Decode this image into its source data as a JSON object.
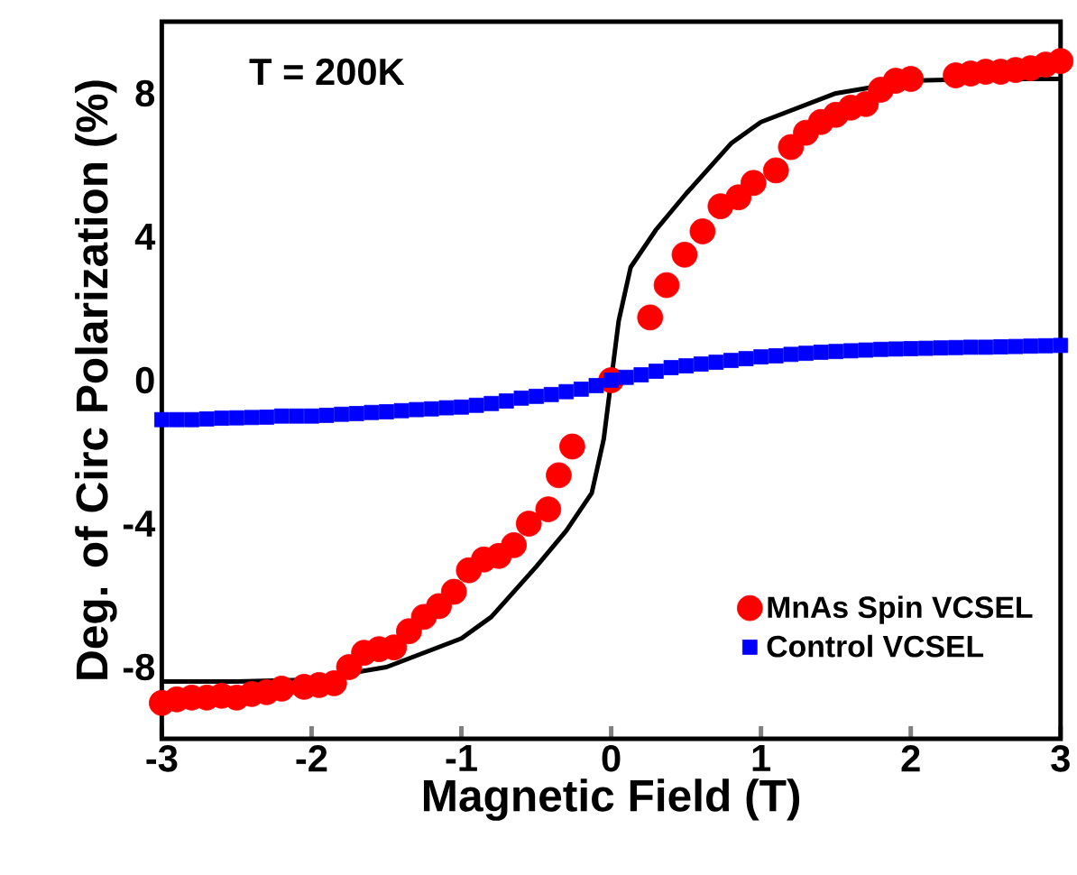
{
  "chart_data": {
    "type": "scatter",
    "xlabel": "Magnetic Field (T)",
    "ylabel": "Deg. of Circ Polarization (%)",
    "annotations": [
      "T = 200K"
    ],
    "xlim": [
      -3,
      3
    ],
    "xticks": [
      -3,
      -2,
      -1,
      0,
      1,
      2,
      3
    ],
    "ylim": [
      -10,
      10
    ],
    "yticks": [
      -8,
      -4,
      0,
      4,
      8
    ],
    "grid": false,
    "legend": "bottom right",
    "series": [
      {
        "name": "MnAs Spin VCSEL",
        "color": "#ff0000",
        "marker": "circle",
        "x": [
          -3,
          -2.9,
          -2.8,
          -2.7,
          -2.6,
          -2.5,
          -2.4,
          -2.3,
          -2.2,
          -2.05,
          -1.95,
          -1.85,
          -1.75,
          -1.65,
          -1.55,
          -1.45,
          -1.35,
          -1.25,
          -1.15,
          -1.05,
          -0.95,
          -0.85,
          -0.75,
          -0.65,
          -0.55,
          -0.42,
          -0.35,
          -0.26,
          0,
          0.26,
          0.37,
          0.49,
          0.61,
          0.73,
          0.85,
          0.95,
          1.1,
          1.2,
          1.3,
          1.4,
          1.5,
          1.6,
          1.7,
          1.8,
          1.9,
          2.0,
          2.3,
          2.4,
          2.5,
          2.6,
          2.7,
          2.8,
          2.9,
          3.0
        ],
        "values": [
          -9.0,
          -8.9,
          -8.85,
          -8.85,
          -8.8,
          -8.85,
          -8.75,
          -8.7,
          -8.6,
          -8.55,
          -8.5,
          -8.45,
          -8.0,
          -7.6,
          -7.5,
          -7.45,
          -7.0,
          -6.6,
          -6.3,
          -5.9,
          -5.3,
          -5.0,
          -4.9,
          -4.6,
          -4.0,
          -3.6,
          -2.65,
          -1.85,
          0,
          1.75,
          2.65,
          3.5,
          4.15,
          4.85,
          5.1,
          5.5,
          5.85,
          6.5,
          6.9,
          7.2,
          7.4,
          7.6,
          7.7,
          8.1,
          8.35,
          8.4,
          8.5,
          8.55,
          8.6,
          8.6,
          8.65,
          8.7,
          8.8,
          8.9
        ]
      },
      {
        "name": "Control VCSEL",
        "color": "#0000ff",
        "marker": "square",
        "x": [
          -3.0,
          -2.9,
          -2.8,
          -2.7,
          -2.6,
          -2.5,
          -2.4,
          -2.3,
          -2.2,
          -2.1,
          -2.0,
          -1.9,
          -1.8,
          -1.7,
          -1.6,
          -1.5,
          -1.4,
          -1.3,
          -1.2,
          -1.1,
          -1.0,
          -0.9,
          -0.8,
          -0.7,
          -0.6,
          -0.5,
          -0.4,
          -0.3,
          -0.2,
          -0.1,
          0,
          0.1,
          0.2,
          0.3,
          0.4,
          0.5,
          0.6,
          0.7,
          0.8,
          0.9,
          1.0,
          1.1,
          1.2,
          1.3,
          1.4,
          1.5,
          1.6,
          1.7,
          1.8,
          1.9,
          2.0,
          2.1,
          2.2,
          2.3,
          2.4,
          2.5,
          2.6,
          2.7,
          2.8,
          2.9,
          3.0
        ],
        "values": [
          -1.1,
          -1.1,
          -1.1,
          -1.08,
          -1.06,
          -1.05,
          -1.04,
          -1.03,
          -1.0,
          -1.0,
          -1.0,
          -0.98,
          -0.95,
          -0.93,
          -0.9,
          -0.88,
          -0.85,
          -0.82,
          -0.8,
          -0.77,
          -0.75,
          -0.7,
          -0.65,
          -0.58,
          -0.5,
          -0.45,
          -0.4,
          -0.32,
          -0.25,
          -0.15,
          0,
          0.08,
          0.15,
          0.25,
          0.35,
          0.4,
          0.45,
          0.5,
          0.55,
          0.6,
          0.65,
          0.68,
          0.72,
          0.75,
          0.78,
          0.8,
          0.82,
          0.84,
          0.86,
          0.87,
          0.88,
          0.89,
          0.9,
          0.91,
          0.92,
          0.92,
          0.93,
          0.94,
          0.95,
          0.96,
          0.97
        ]
      },
      {
        "type": "line",
        "color": "#000000",
        "marker": "none",
        "x": [
          -3,
          -2.5,
          -2,
          -1.5,
          -1,
          -0.8,
          -0.5,
          -0.3,
          -0.13,
          -0.05,
          0,
          0.05,
          0.13,
          0.3,
          0.5,
          0.8,
          1,
          1.5,
          2,
          2.5,
          3
        ],
        "values": [
          -8.4,
          -8.4,
          -8.35,
          -8.0,
          -7.2,
          -6.6,
          -5.2,
          -4.2,
          -3.15,
          -1.65,
          0,
          1.65,
          3.15,
          4.2,
          5.2,
          6.6,
          7.2,
          8.0,
          8.35,
          8.4,
          8.4
        ]
      }
    ]
  }
}
